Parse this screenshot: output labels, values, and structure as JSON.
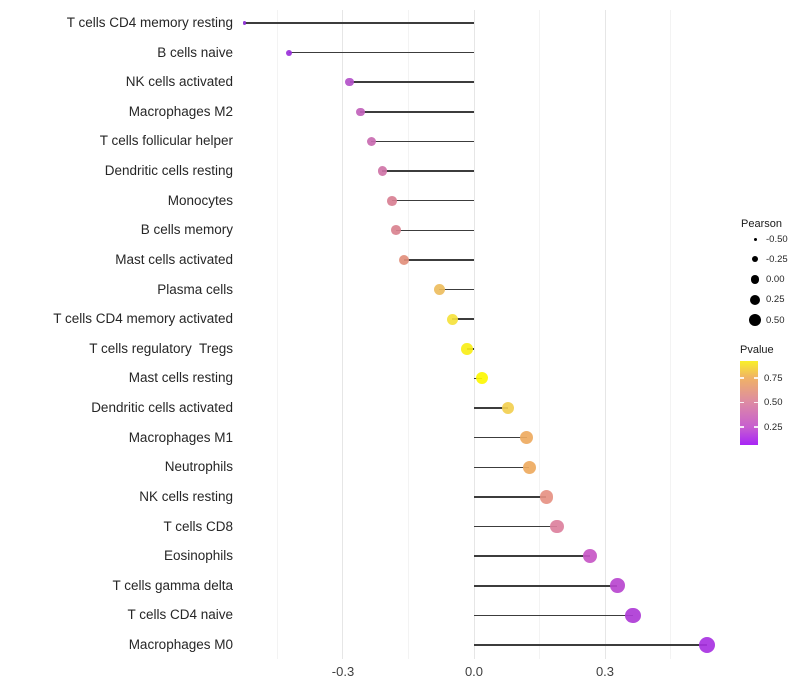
{
  "chart_data": {
    "type": "scatter",
    "variant": "lollipop",
    "title": "",
    "xlabel": "",
    "ylabel": "",
    "grid": true,
    "x_axis": {
      "range": [
        -0.55,
        0.6
      ],
      "major_ticks": [
        -0.3,
        0.0,
        0.3
      ],
      "tick_labels": [
        "-0.3",
        "0.0",
        "0.3"
      ],
      "minor_ticks": [
        -0.45,
        -0.15,
        0.15,
        0.45
      ]
    },
    "points": [
      {
        "label": "T cells CD4 memory resting",
        "pearson": -0.525,
        "pvalue": 0.1,
        "color": "#8a2bd3"
      },
      {
        "label": "B cells naive",
        "pearson": -0.424,
        "pvalue": 0.13,
        "color": "#9a30da"
      },
      {
        "label": "NK cells activated",
        "pearson": -0.285,
        "pvalue": 0.27,
        "color": "#b351c9"
      },
      {
        "label": "Macrophages M2",
        "pearson": -0.26,
        "pvalue": 0.32,
        "color": "#c162bb"
      },
      {
        "label": "T cells follicular helper",
        "pearson": -0.235,
        "pvalue": 0.36,
        "color": "#c96bb1"
      },
      {
        "label": "Dendritic cells resting",
        "pearson": -0.21,
        "pvalue": 0.4,
        "color": "#cf74a7"
      },
      {
        "label": "Monocytes",
        "pearson": -0.188,
        "pvalue": 0.44,
        "color": "#d87f92"
      },
      {
        "label": "B cells memory",
        "pearson": -0.178,
        "pvalue": 0.46,
        "color": "#d9828f"
      },
      {
        "label": "Mast cells activated",
        "pearson": -0.16,
        "pvalue": 0.5,
        "color": "#e28f7c"
      },
      {
        "label": "Plasma cells",
        "pearson": -0.08,
        "pvalue": 0.68,
        "color": "#edbd5e"
      },
      {
        "label": "T cells CD4 memory activated",
        "pearson": -0.05,
        "pvalue": 0.8,
        "color": "#f5e23c"
      },
      {
        "label": "T cells regulatory  Tregs",
        "pearson": -0.016,
        "pvalue": 0.87,
        "color": "#f9ee18"
      },
      {
        "label": "Mast cells resting",
        "pearson": 0.018,
        "pvalue": 0.93,
        "color": "#fdf702"
      },
      {
        "label": "Dendritic cells activated",
        "pearson": 0.078,
        "pvalue": 0.74,
        "color": "#f2cf50"
      },
      {
        "label": "Macrophages M1",
        "pearson": 0.121,
        "pvalue": 0.63,
        "color": "#eeaa5f"
      },
      {
        "label": "Neutrophils",
        "pearson": 0.127,
        "pvalue": 0.62,
        "color": "#eeaa5f"
      },
      {
        "label": "NK cells resting",
        "pearson": 0.166,
        "pvalue": 0.52,
        "color": "#e69183"
      },
      {
        "label": "T cells CD8",
        "pearson": 0.19,
        "pvalue": 0.44,
        "color": "#dc809d"
      },
      {
        "label": "Eosinophils",
        "pearson": 0.265,
        "pvalue": 0.24,
        "color": "#c757c5"
      },
      {
        "label": "T cells gamma delta",
        "pearson": 0.328,
        "pvalue": 0.18,
        "color": "#b846cf"
      },
      {
        "label": "T cells CD4 naive",
        "pearson": 0.364,
        "pvalue": 0.13,
        "color": "#ae3bd6"
      },
      {
        "label": "Macrophages M0",
        "pearson": 0.533,
        "pvalue": 0.03,
        "color": "#a832e2"
      }
    ],
    "legend_size": {
      "title": "Pearson",
      "entries": [
        {
          "label": "-0.50",
          "value": -0.5
        },
        {
          "label": "-0.25",
          "value": -0.25
        },
        {
          "label": "0.00",
          "value": 0.0
        },
        {
          "label": "0.25",
          "value": 0.25
        },
        {
          "label": "0.50",
          "value": 0.5
        }
      ]
    },
    "legend_color": {
      "title": "Pvalue",
      "tick_labels": [
        "0.75",
        "0.50",
        "0.25"
      ],
      "gradient_top_to_bottom": [
        {
          "pos": 0.0,
          "color": "#f9f02a"
        },
        {
          "pos": 0.2,
          "color": "#f0b266"
        },
        {
          "pos": 0.49,
          "color": "#dd8ba4"
        },
        {
          "pos": 0.79,
          "color": "#c75ed0"
        },
        {
          "pos": 1.0,
          "color": "#a825f6"
        }
      ]
    }
  }
}
